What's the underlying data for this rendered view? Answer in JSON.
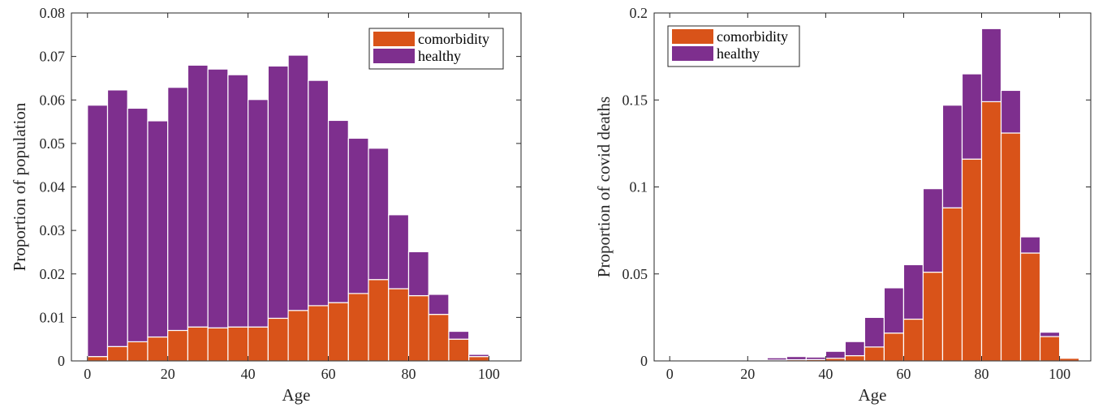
{
  "chart_data": [
    {
      "type": "bar",
      "stacked": true,
      "xlabel": "Age",
      "ylabel": "Proportion of population",
      "xlim": [
        -4,
        108
      ],
      "ylim": [
        0,
        0.08
      ],
      "xticks": [
        0,
        20,
        40,
        60,
        80,
        100
      ],
      "yticks": [
        0,
        0.01,
        0.02,
        0.03,
        0.04,
        0.05,
        0.06,
        0.07,
        0.08
      ],
      "ytick_labels": [
        "0",
        "0.01",
        "0.02",
        "0.03",
        "0.04",
        "0.05",
        "0.06",
        "0.07",
        "0.08"
      ],
      "bin_width": 5,
      "x": [
        2.5,
        7.5,
        12.5,
        17.5,
        22.5,
        27.5,
        32.5,
        37.5,
        42.5,
        47.5,
        52.5,
        57.5,
        62.5,
        67.5,
        72.5,
        77.5,
        82.5,
        87.5,
        92.5,
        97.5
      ],
      "series": [
        {
          "name": "comorbidity",
          "color": "#d95319",
          "values": [
            0.001,
            0.0033,
            0.0044,
            0.0055,
            0.007,
            0.0078,
            0.0076,
            0.0078,
            0.0078,
            0.0098,
            0.0116,
            0.0127,
            0.0134,
            0.0155,
            0.0187,
            0.0166,
            0.015,
            0.0107,
            0.005,
            0.001
          ]
        },
        {
          "name": "healthy",
          "color": "#7e2f8e",
          "values": [
            0.0578,
            0.059,
            0.0537,
            0.0497,
            0.0559,
            0.0602,
            0.0595,
            0.058,
            0.0523,
            0.058,
            0.0587,
            0.0518,
            0.0419,
            0.0357,
            0.0302,
            0.017,
            0.0101,
            0.0046,
            0.0018,
            0.0005
          ]
        }
      ],
      "legend": "top-right",
      "grid": false
    },
    {
      "type": "bar",
      "stacked": true,
      "xlabel": "Age",
      "ylabel": "Proportion of covid deaths",
      "xlim": [
        -4,
        108
      ],
      "ylim": [
        0,
        0.2
      ],
      "xticks": [
        0,
        20,
        40,
        60,
        80,
        100
      ],
      "yticks": [
        0,
        0.05,
        0.1,
        0.15,
        0.2
      ],
      "ytick_labels": [
        "0",
        "0.05",
        "0.1",
        "0.15",
        "0.2"
      ],
      "bin_width": 5,
      "x": [
        2.5,
        7.5,
        12.5,
        17.5,
        22.5,
        27.5,
        32.5,
        37.5,
        42.5,
        47.5,
        52.5,
        57.5,
        62.5,
        67.5,
        72.5,
        77.5,
        82.5,
        87.5,
        92.5,
        97.5,
        102.5
      ],
      "series": [
        {
          "name": "comorbidity",
          "color": "#d95319",
          "values": [
            0,
            0,
            0,
            0,
            0.0002,
            0.0005,
            0.0007,
            0.0008,
            0.0015,
            0.003,
            0.008,
            0.016,
            0.024,
            0.051,
            0.088,
            0.116,
            0.149,
            0.131,
            0.062,
            0.014,
            0.0015
          ]
        },
        {
          "name": "healthy",
          "color": "#7e2f8e",
          "values": [
            0,
            0,
            0,
            0,
            0.0003,
            0.0013,
            0.0018,
            0.0014,
            0.004,
            0.0081,
            0.017,
            0.026,
            0.0313,
            0.048,
            0.059,
            0.049,
            0.042,
            0.0245,
            0.0093,
            0.0025,
            0
          ]
        }
      ],
      "legend": "top-left",
      "grid": false
    }
  ]
}
